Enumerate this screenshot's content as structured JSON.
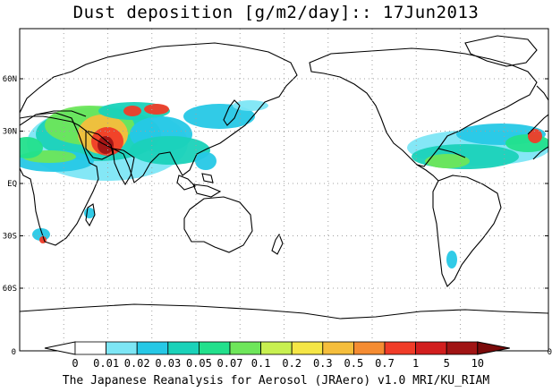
{
  "title": "Dust deposition [g/m2/day]:: 17Jun2013",
  "footer": "The Japanese Reanalysis for Aerosol (JRAero) v1.0 MRI/KU_RIAM",
  "map": {
    "projection": "equirectangular, centered on 150E",
    "lat_labels": [
      "60N",
      "30N",
      "EQ",
      "30S",
      "60S"
    ],
    "left_axis_bottom_label": "0",
    "right_axis_bottom_label": "0",
    "grid": "dotted"
  },
  "colorbar": {
    "labels": [
      "0",
      "0.01",
      "0.02",
      "0.03",
      "0.05",
      "0.07",
      "0.1",
      "0.2",
      "0.3",
      "0.5",
      "0.7",
      "1",
      "5",
      "10"
    ],
    "colors": [
      "#ffffff",
      "#ffffff",
      "#7de6f5",
      "#26c8e6",
      "#1ad2b9",
      "#22e08c",
      "#6ee65a",
      "#c8f050",
      "#f5e646",
      "#f5be3c",
      "#f58c32",
      "#f03c28",
      "#d21e1e",
      "#a01414",
      "#7a0a0a"
    ]
  },
  "colors": {
    "coast": "#000000",
    "grid": "#a0a0a0"
  }
}
